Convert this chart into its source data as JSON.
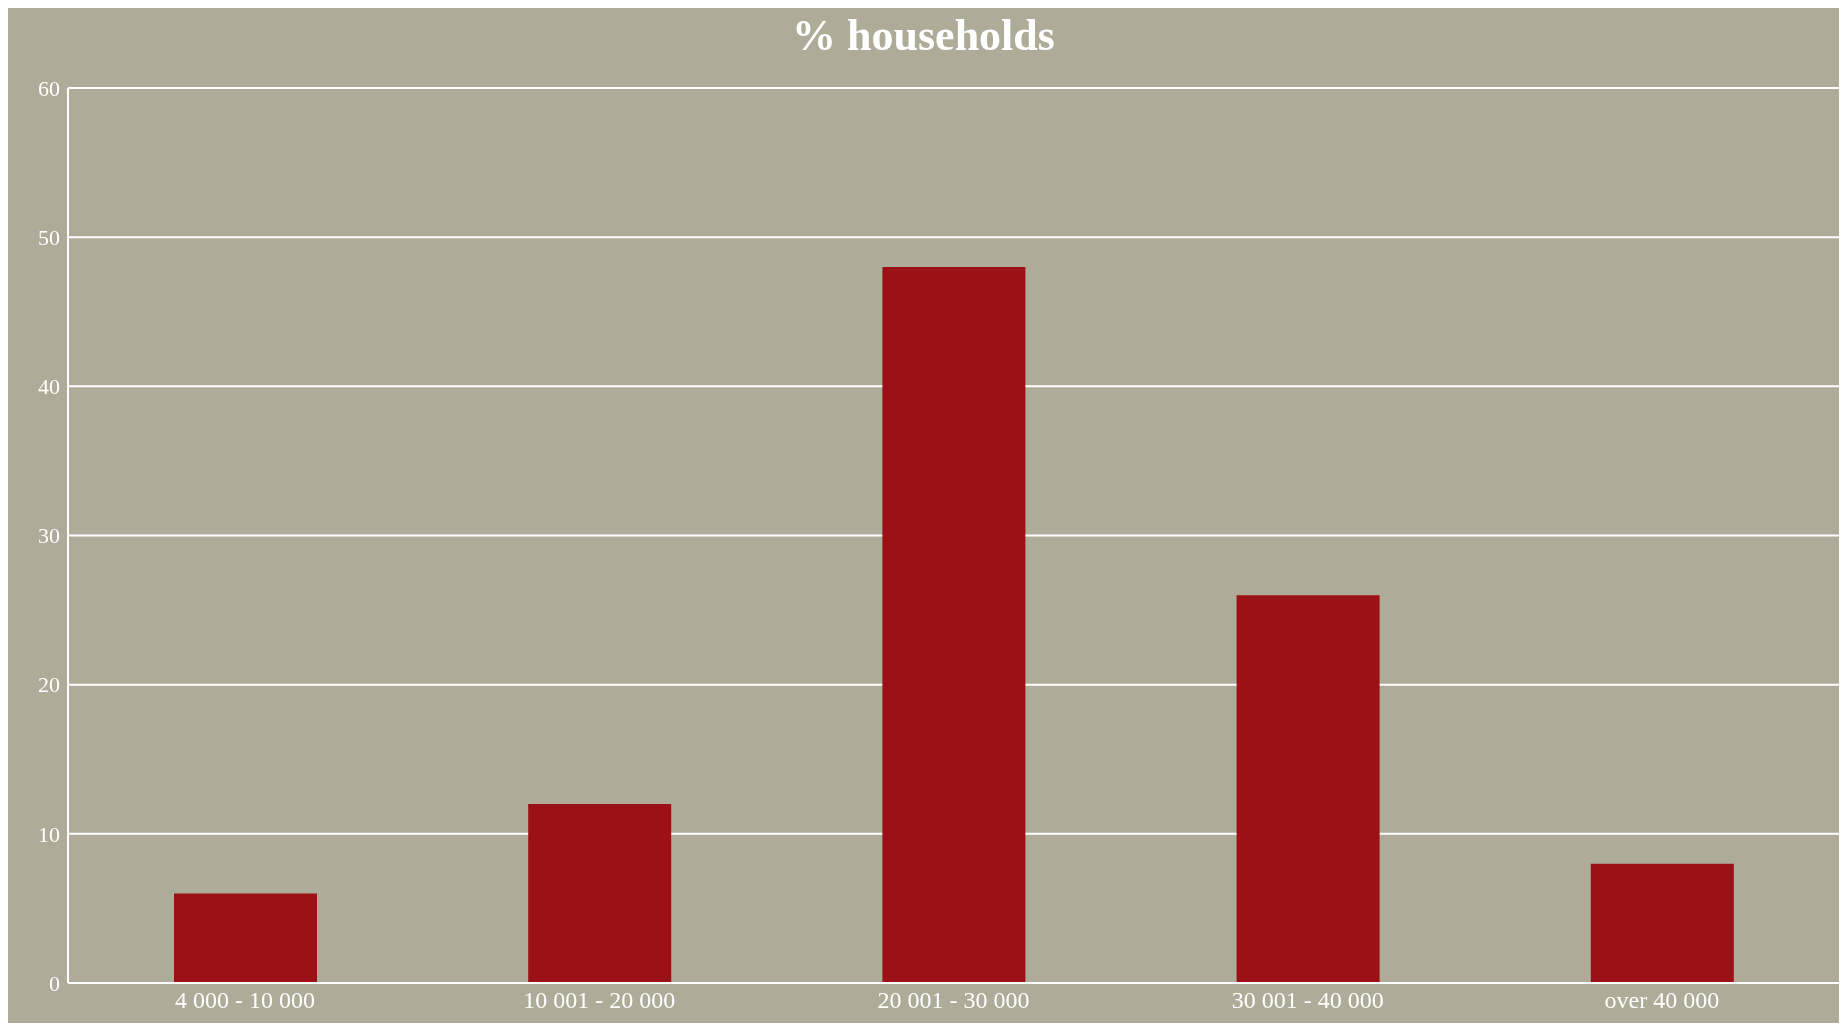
{
  "chart_data": {
    "type": "bar",
    "title": "% households",
    "categories": [
      "4 000 - 10 000",
      "10 001 - 20 000",
      "20 001 - 30 000",
      "30 001 - 40 000",
      "over 40 000"
    ],
    "values": [
      6,
      12,
      48,
      26,
      8
    ],
    "color": "#9b1115",
    "ylim": [
      0,
      60
    ],
    "yticks": [
      0,
      10,
      20,
      30,
      40,
      50,
      60
    ],
    "grid": "y"
  }
}
